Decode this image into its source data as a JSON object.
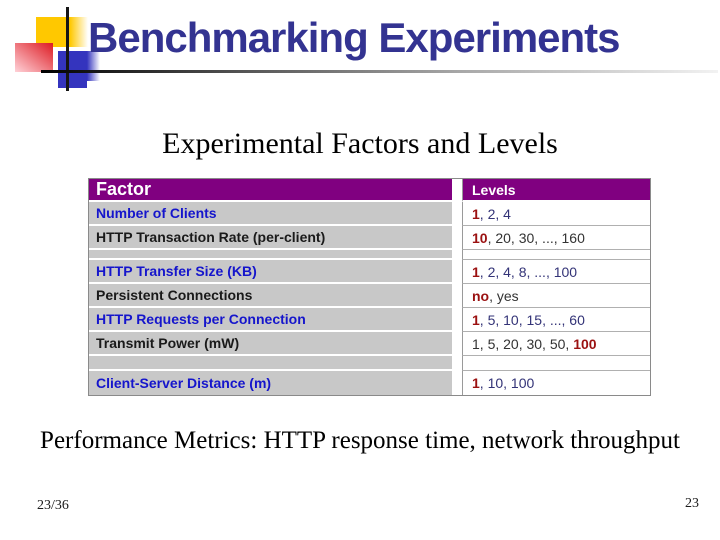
{
  "slide": {
    "title": "Benchmarking Experiments",
    "subtitle": "Experimental Factors and Levels",
    "footer": "Performance Metrics: HTTP response time, network throughput",
    "page_indicator": "23/36",
    "page_number": "23"
  },
  "table": {
    "header": {
      "factor": "Factor",
      "levels": "Levels"
    },
    "rows": [
      {
        "type": "row",
        "style": "blue",
        "factor": "Number of Clients",
        "levels": {
          "pre": "",
          "red": "1",
          "post": ", 2, 4"
        }
      },
      {
        "type": "row",
        "style": "dark",
        "factor": "HTTP Transaction Rate (per-client)",
        "levels": {
          "pre": "",
          "red": "10",
          "post": ", 20, 30, ..., 160"
        }
      },
      {
        "type": "spacer",
        "size": "small"
      },
      {
        "type": "row",
        "style": "blue",
        "factor": "HTTP Transfer Size (KB)",
        "levels": {
          "pre": "",
          "red": "1",
          "post": ", 2, 4, 8, ..., 100"
        }
      },
      {
        "type": "row",
        "style": "dark",
        "factor": "Persistent Connections",
        "levels": {
          "pre": "",
          "red": "no",
          "post": ", yes"
        }
      },
      {
        "type": "row",
        "style": "blue",
        "factor": "HTTP Requests per Connection",
        "levels": {
          "pre": "",
          "red": "1",
          "post": ", 5, 10, 15, ..., 60"
        }
      },
      {
        "type": "row",
        "style": "dark",
        "factor": "Transmit Power (mW)",
        "levels": {
          "pre": "1, 5, 20, 30, 50, ",
          "red": "100",
          "post": ""
        }
      },
      {
        "type": "spacer",
        "size": "large"
      },
      {
        "type": "row",
        "style": "blue",
        "factor": "Client-Server Distance (m)",
        "levels": {
          "pre": "",
          "red": "1",
          "post": ", 10, 100"
        }
      }
    ]
  },
  "colors": {
    "header_bg": "#800080",
    "row_bg": "#C8C8C8",
    "factor_blue": "#1515CC",
    "factor_dark": "#1A1A1A",
    "levels_navy": "#333377",
    "levels_dark": "#333333",
    "accent_red": "#9B1111",
    "title_navy": "#333391",
    "logo_yellow": "#FFC800",
    "logo_blue": "#3434BE",
    "logo_red": "#DD1A22"
  }
}
